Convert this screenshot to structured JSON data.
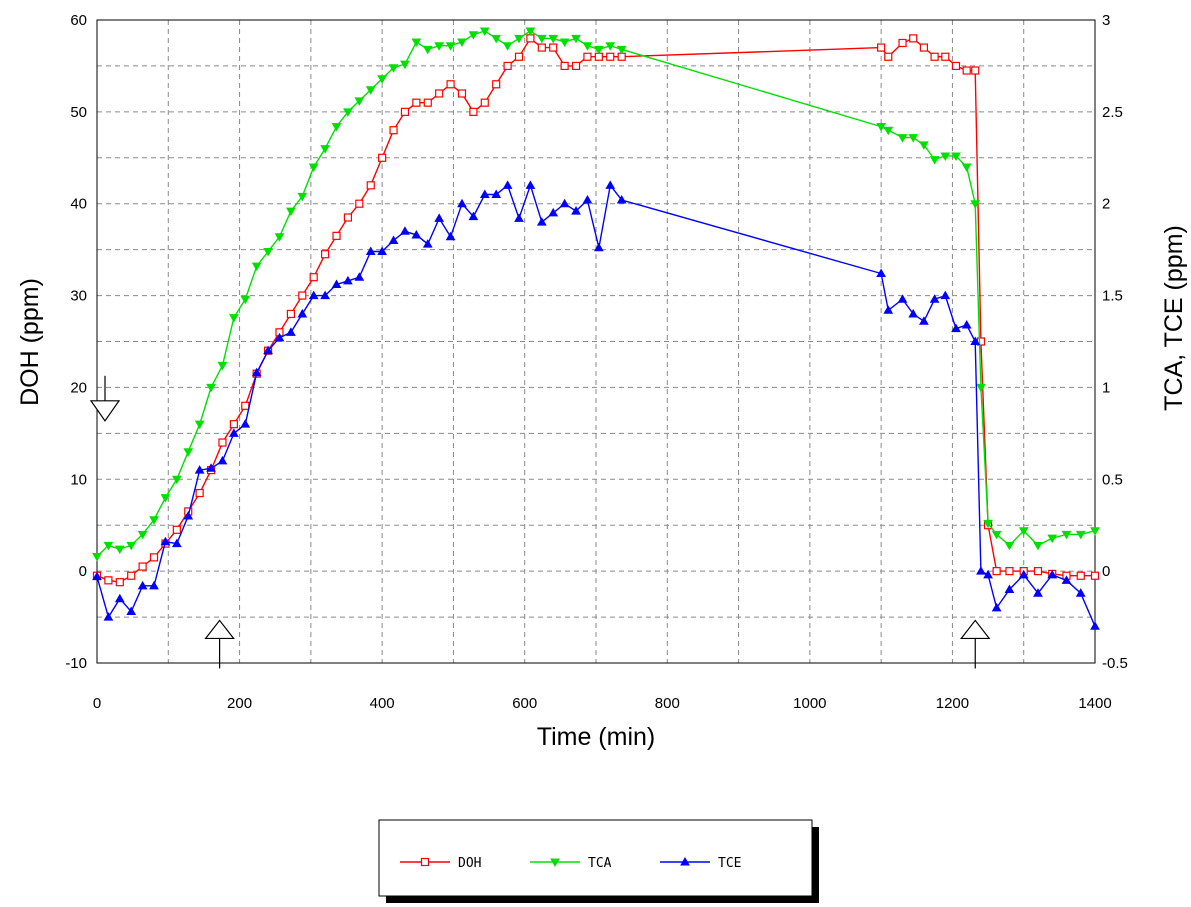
{
  "chart_data": {
    "type": "line",
    "xlabel": "Time (min)",
    "ylabel_left": "DOH (ppm)",
    "ylabel_right": "TCA, TCE (ppm)",
    "xlim": [
      0,
      1400
    ],
    "ylim_left": [
      -10,
      60
    ],
    "ylim_right": [
      -0.5,
      3
    ],
    "x_ticks": [
      "0",
      "200",
      "400",
      "600",
      "800",
      "1000",
      "1200",
      "1400"
    ],
    "y_left_ticks": [
      "-10",
      "0",
      "10",
      "20",
      "30",
      "40",
      "50",
      "60"
    ],
    "y_right_ticks": [
      "-0.5",
      "0",
      "0.5",
      "1",
      "1.5",
      "2",
      "2.5",
      "3"
    ],
    "grid": true,
    "legend_position": "bottom-center",
    "annotations": [
      {
        "kind": "arrow-down",
        "x": 0,
        "y_left": 18
      },
      {
        "kind": "arrow-up",
        "x": 172,
        "y_left": -7
      },
      {
        "kind": "arrow-up",
        "x": 1232,
        "y_left": -7
      }
    ],
    "series": [
      {
        "name": "DOH",
        "axis": "left",
        "color": "#ff0000",
        "marker": "square",
        "x": [
          0,
          16,
          32,
          48,
          64,
          80,
          96,
          112,
          128,
          144,
          160,
          176,
          192,
          208,
          224,
          240,
          256,
          272,
          288,
          304,
          320,
          336,
          352,
          368,
          384,
          400,
          416,
          432,
          448,
          464,
          480,
          496,
          512,
          528,
          544,
          560,
          576,
          592,
          608,
          624,
          640,
          656,
          672,
          688,
          704,
          720,
          736,
          1100,
          1110,
          1130,
          1145,
          1160,
          1175,
          1190,
          1205,
          1220,
          1232,
          1240,
          1250,
          1262,
          1280,
          1300,
          1320,
          1340,
          1360,
          1380,
          1400
        ],
        "values": [
          -0.5,
          -1,
          -1.2,
          -0.5,
          0.5,
          1.5,
          3,
          4.5,
          6.5,
          8.5,
          11,
          14,
          16,
          18,
          21.5,
          24,
          26,
          28,
          30,
          32,
          34.5,
          36.5,
          38.5,
          40,
          42,
          45,
          48,
          50,
          51,
          51,
          52,
          53,
          52,
          50,
          51,
          53,
          55,
          56,
          58,
          57,
          57,
          55,
          55,
          56,
          56,
          56,
          56,
          57,
          56,
          57.5,
          58,
          57,
          56,
          56,
          55,
          54.5,
          54.5,
          25,
          5,
          0,
          0,
          0,
          0,
          -0.3,
          -0.5,
          -0.5,
          -0.5
        ]
      },
      {
        "name": "TCA",
        "axis": "right",
        "color": "#00e000",
        "marker": "triangle-down",
        "x": [
          0,
          16,
          32,
          48,
          64,
          80,
          96,
          112,
          128,
          144,
          160,
          176,
          192,
          208,
          224,
          240,
          256,
          272,
          288,
          304,
          320,
          336,
          352,
          368,
          384,
          400,
          416,
          432,
          448,
          464,
          480,
          496,
          512,
          528,
          544,
          560,
          576,
          592,
          608,
          624,
          640,
          656,
          672,
          688,
          704,
          720,
          736,
          1100,
          1110,
          1130,
          1145,
          1160,
          1175,
          1190,
          1205,
          1220,
          1232,
          1240,
          1250,
          1262,
          1280,
          1300,
          1320,
          1340,
          1360,
          1380,
          1400
        ],
        "values": [
          0.08,
          0.14,
          0.12,
          0.14,
          0.2,
          0.28,
          0.4,
          0.5,
          0.65,
          0.8,
          1,
          1.12,
          1.38,
          1.48,
          1.66,
          1.74,
          1.82,
          1.96,
          2.04,
          2.2,
          2.3,
          2.42,
          2.5,
          2.56,
          2.62,
          2.68,
          2.74,
          2.76,
          2.88,
          2.84,
          2.86,
          2.86,
          2.88,
          2.92,
          2.94,
          2.9,
          2.86,
          2.9,
          2.94,
          2.9,
          2.9,
          2.88,
          2.9,
          2.86,
          2.84,
          2.86,
          2.84,
          2.42,
          2.4,
          2.36,
          2.36,
          2.32,
          2.24,
          2.26,
          2.26,
          2.2,
          2,
          1,
          0.26,
          0.2,
          0.14,
          0.22,
          0.14,
          0.18,
          0.2,
          0.2,
          0.22
        ]
      },
      {
        "name": "TCE",
        "axis": "right",
        "color": "#0000ff",
        "marker": "triangle-up",
        "x": [
          0,
          16,
          32,
          48,
          64,
          80,
          96,
          112,
          128,
          144,
          160,
          176,
          192,
          208,
          224,
          240,
          256,
          272,
          288,
          304,
          320,
          336,
          352,
          368,
          384,
          400,
          416,
          432,
          448,
          464,
          480,
          496,
          512,
          528,
          544,
          560,
          576,
          592,
          608,
          624,
          640,
          656,
          672,
          688,
          704,
          720,
          736,
          1100,
          1110,
          1130,
          1145,
          1160,
          1175,
          1190,
          1205,
          1220,
          1232,
          1240,
          1250,
          1262,
          1280,
          1300,
          1320,
          1340,
          1360,
          1380,
          1400
        ],
        "values": [
          -0.03,
          -0.25,
          -0.15,
          -0.22,
          -0.08,
          -0.08,
          0.16,
          0.15,
          0.3,
          0.55,
          0.56,
          0.6,
          0.75,
          0.8,
          1.08,
          1.2,
          1.27,
          1.3,
          1.4,
          1.5,
          1.5,
          1.56,
          1.58,
          1.6,
          1.74,
          1.74,
          1.8,
          1.85,
          1.83,
          1.78,
          1.92,
          1.82,
          2.0,
          1.93,
          2.05,
          2.05,
          2.1,
          1.92,
          2.1,
          1.9,
          1.95,
          2.0,
          1.96,
          2.02,
          1.76,
          2.1,
          2.02,
          1.62,
          1.42,
          1.48,
          1.4,
          1.36,
          1.48,
          1.5,
          1.32,
          1.34,
          1.25,
          0,
          -0.02,
          -0.2,
          -0.1,
          -0.02,
          -0.12,
          -0.02,
          -0.05,
          -0.12,
          -0.3
        ]
      }
    ]
  }
}
